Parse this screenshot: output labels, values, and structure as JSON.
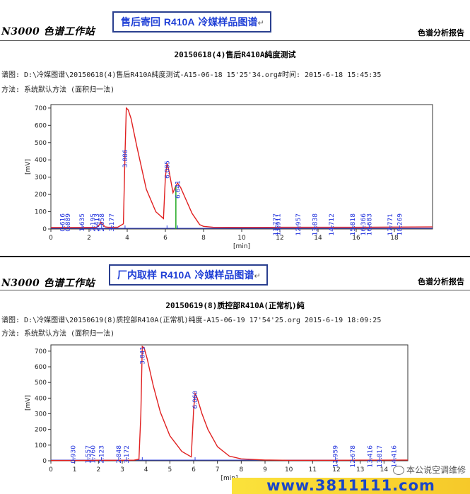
{
  "panels": [
    {
      "brand": "N3000 色谱工作站",
      "report_label": "色谱分析报告",
      "callout": {
        "cn_a": "售后寄回 ",
        "en": "R410A",
        "cn_b": " 冷媒样品图谱",
        "mark": "↵"
      },
      "title": "20150618(4)售后R410A純度测试",
      "meta_line1": "谱图: D:\\冷媒图谱\\20150618(4)售后R410A純度测试-A15-06-18 15'25'34.org#时间: 2015-6-18 15:45:35",
      "meta_line2": "方法: 系统默认方法 (面积归一法)"
    },
    {
      "brand": "N3000 色谱工作站",
      "report_label": "色谱分析报告",
      "callout": {
        "cn_a": "厂内取样 ",
        "en": "R410A",
        "cn_b": " 冷媒样品图谱",
        "mark": "↵"
      },
      "title": "20150619(8)质控部R410A(正常机)純",
      "meta_line1": "谱图: D:\\冷媒图谱\\20150619(8)质控部R410A(正常机)纯度-A15-06-19 17'54'25.org 2015-6-19 18:09:25",
      "meta_line2": "方法: 系统默认方法 (面积归一法)"
    }
  ],
  "chart_data": [
    {
      "type": "line",
      "title": "20150618(4)售后R410A純度测试",
      "xlabel": "[min]",
      "ylabel": "[mV]",
      "xlim": [
        0,
        20
      ],
      "ylim": [
        0,
        720
      ],
      "x_ticks": [
        0,
        2,
        4,
        6,
        8,
        10,
        12,
        14,
        16,
        18
      ],
      "y_ticks": [
        0,
        100,
        200,
        300,
        400,
        500,
        600,
        700
      ],
      "series_color": "#e02020",
      "label_color": "#2233dd",
      "x": [
        0,
        1,
        2,
        2.4,
        2.55,
        2.62,
        2.7,
        2.85,
        3,
        3.5,
        3.8,
        3.88,
        3.95,
        4.05,
        4.2,
        4.5,
        5,
        5.5,
        5.9,
        6.0,
        6.085,
        6.2,
        6.4,
        6.55,
        6.641,
        6.8,
        7,
        7.4,
        7.8,
        8,
        8.5,
        10,
        12,
        14,
        16,
        18,
        20
      ],
      "y": [
        8,
        8,
        9,
        10,
        25,
        40,
        28,
        12,
        10,
        10,
        30,
        420,
        700,
        690,
        640,
        480,
        230,
        100,
        60,
        300,
        380,
        330,
        210,
        250,
        265,
        240,
        190,
        90,
        25,
        15,
        10,
        9,
        10,
        10,
        10,
        11,
        12
      ],
      "peak_labels": [
        "0.616",
        "0.889",
        "1.635",
        "2.195",
        "2.413",
        "2.658",
        "3.177",
        "3.886",
        "6.085",
        "6.641",
        "11.777",
        "11.911",
        "12.957",
        "13.838",
        "14.712",
        "15.818",
        "16.366",
        "16.683",
        "17.771",
        "18.269"
      ],
      "peak_times": [
        0.616,
        0.889,
        1.635,
        2.195,
        2.413,
        2.658,
        3.177,
        3.886,
        6.085,
        6.641,
        11.777,
        11.911,
        12.957,
        13.838,
        14.712,
        15.818,
        16.366,
        16.683,
        17.771,
        18.269
      ],
      "split_line_at": 6.55
    },
    {
      "type": "line",
      "title": "20150619(8)质控部R410A(正常机)純",
      "xlabel": "[min]",
      "ylabel": "[mV]",
      "xlim": [
        0,
        15
      ],
      "ylim": [
        0,
        740
      ],
      "x_ticks": [
        0,
        1,
        2,
        3,
        4,
        5,
        6,
        7,
        8,
        9,
        10,
        11,
        12,
        13,
        14
      ],
      "y_ticks": [
        0,
        100,
        200,
        300,
        400,
        500,
        600,
        700
      ],
      "series_color": "#e02020",
      "label_color": "#2233dd",
      "x": [
        0,
        1,
        2,
        3,
        3.5,
        3.7,
        3.78,
        3.84,
        3.92,
        4.05,
        4.3,
        4.6,
        5,
        5.5,
        5.9,
        6.0,
        6.06,
        6.15,
        6.35,
        6.6,
        7,
        7.5,
        8,
        9,
        10,
        11,
        12,
        13,
        14,
        15
      ],
      "y": [
        2,
        2,
        3,
        3,
        4,
        10,
        300,
        730,
        720,
        650,
        480,
        310,
        160,
        60,
        25,
        330,
        430,
        400,
        300,
        200,
        90,
        30,
        12,
        5,
        3,
        3,
        3,
        4,
        4,
        5
      ],
      "peak_labels": [
        "0.930",
        "1.557",
        "1.760",
        "2.123",
        "2.848",
        "3.172",
        "3.841",
        "6.060",
        "11.959",
        "12.678",
        "13.416",
        "13.817",
        "14.416"
      ],
      "peak_times": [
        0.93,
        1.557,
        1.76,
        2.123,
        2.848,
        3.172,
        3.841,
        6.06,
        11.959,
        12.678,
        13.416,
        13.817,
        14.416
      ]
    }
  ],
  "watermark": {
    "text": "本公说空调维修",
    "url": "www.3811111.com"
  }
}
